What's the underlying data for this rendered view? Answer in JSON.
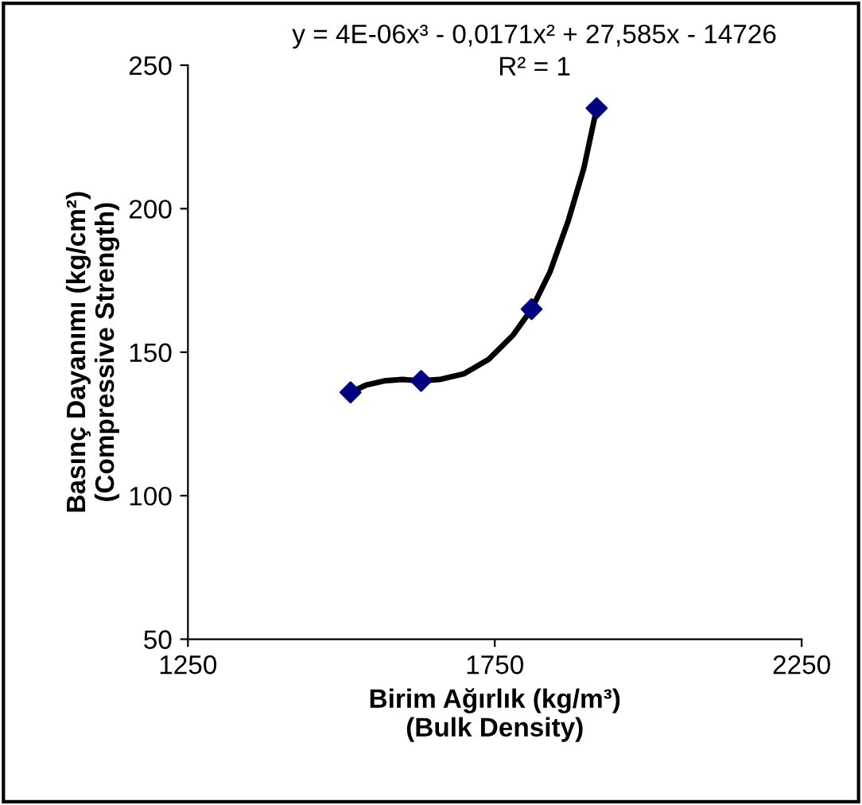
{
  "chart_data": {
    "type": "scatter",
    "xlabel": "Birim Ağırlık (kg/m³)\n(Bulk Density)",
    "ylabel": "Basınç Dayanımı (kg/cm²)\n(Compressive Strength)",
    "xlim": [
      1250,
      2250
    ],
    "xticks": [
      1250,
      1750,
      2250
    ],
    "ylim": [
      50,
      250
    ],
    "yticks": [
      50,
      100,
      150,
      200,
      250
    ],
    "grid": false,
    "legend": false,
    "marker": "diamond",
    "annotations": [
      "y = 4E-06x³ - 0,0171x² + 27,585x - 14726",
      "R² = 1"
    ],
    "series": [
      {
        "type": "line",
        "color": "#000000",
        "marker": "none",
        "line_style": "solid",
        "x": [
          1515,
          1540,
          1570,
          1600,
          1630,
          1660,
          1700,
          1740,
          1780,
          1810,
          1840,
          1870,
          1895,
          1916
        ],
        "values": [
          136,
          138.5,
          140,
          140.5,
          140,
          140.5,
          142.5,
          147.5,
          156,
          165,
          178,
          196,
          214,
          235
        ]
      },
      {
        "color": "#000080",
        "x": [
          1515,
          1630,
          1810,
          1916
        ],
        "values": [
          136,
          140,
          165,
          235
        ]
      }
    ]
  }
}
